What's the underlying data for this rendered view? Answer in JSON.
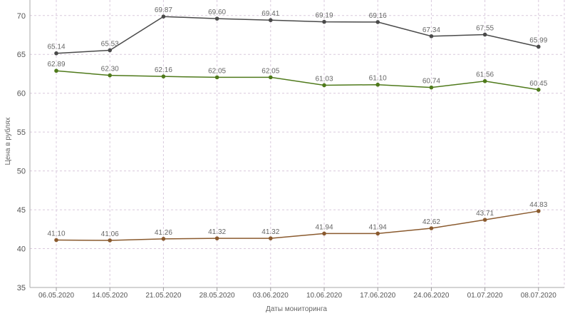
{
  "chart_data": {
    "type": "line",
    "xlabel": "Даты мониторинга",
    "ylabel": "Цена в рублях",
    "ylim": [
      35,
      72
    ],
    "yticks": [
      35,
      40,
      45,
      50,
      55,
      60,
      65,
      70
    ],
    "grid": true,
    "categories": [
      "06.05.2020",
      "14.05.2020",
      "21.05.2020",
      "28.05.2020",
      "03.06.2020",
      "10.06.2020",
      "17.06.2020",
      "24.06.2020",
      "01.07.2020",
      "08.07.2020"
    ],
    "series": [
      {
        "color": "#4a4a4a",
        "values": [
          65.14,
          65.53,
          69.87,
          69.6,
          69.41,
          69.19,
          69.16,
          67.34,
          67.55,
          65.99
        ],
        "labels": [
          "65.14",
          "65.53",
          "69.87",
          "69.60",
          "69.41",
          "69.19",
          "69.16",
          "67.34",
          "67.55",
          "65.99"
        ]
      },
      {
        "color": "#4f7a1b",
        "values": [
          62.89,
          62.3,
          62.16,
          62.05,
          62.05,
          61.03,
          61.1,
          60.74,
          61.56,
          60.45
        ],
        "labels": [
          "62.89",
          "62.30",
          "62.16",
          "62.05",
          "62.05",
          "61.03",
          "61.10",
          "60.74",
          "61.56",
          "60.45"
        ]
      },
      {
        "color": "#8a5a2e",
        "values": [
          41.1,
          41.06,
          41.26,
          41.32,
          41.32,
          41.94,
          41.94,
          42.62,
          43.71,
          44.83
        ],
        "labels": [
          "41.10",
          "41.06",
          "41.26",
          "41.32",
          "41.32",
          "41.94",
          "41.94",
          "42.62",
          "43.71",
          "44.83"
        ]
      }
    ]
  }
}
